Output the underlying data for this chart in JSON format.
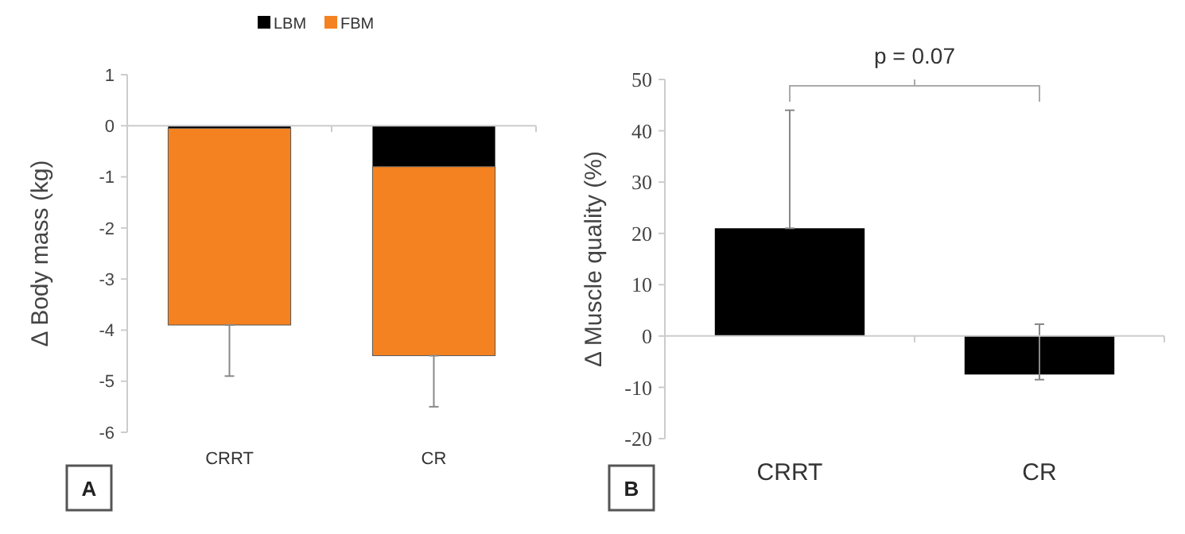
{
  "chart_data": [
    {
      "type": "bar",
      "stacked": true,
      "ylabel": "Δ Body mass (kg)",
      "categories": [
        "CRRT",
        "CR"
      ],
      "ylim": [
        -6,
        1
      ],
      "yticks": [
        -6,
        -5,
        -4,
        -3,
        -2,
        -1,
        0,
        1
      ],
      "legend": "top",
      "annotations": [
        "A"
      ],
      "series": [
        {
          "name": "LBM",
          "color": "#000000",
          "values": [
            -0.05,
            -0.8
          ]
        },
        {
          "name": "FBM",
          "color": "#f58220",
          "values": [
            -3.85,
            -3.7
          ],
          "errors": [
            [
              -4.9,
              -3.9
            ],
            [
              -5.5,
              -4.5
            ]
          ]
        }
      ]
    },
    {
      "type": "bar",
      "ylabel": "Δ Muscle quality (%)",
      "categories": [
        "CRRT",
        "CR"
      ],
      "ylim": [
        -20,
        50
      ],
      "yticks": [
        -20,
        -10,
        0,
        10,
        20,
        30,
        40,
        50
      ],
      "legend": false,
      "annotations": [
        "p = 0.07",
        "B"
      ],
      "series": [
        {
          "color": "#000000",
          "values": [
            21,
            -7.5
          ],
          "errors": [
            [
              21,
              44
            ],
            [
              -8.5,
              2.3
            ]
          ]
        }
      ]
    }
  ]
}
